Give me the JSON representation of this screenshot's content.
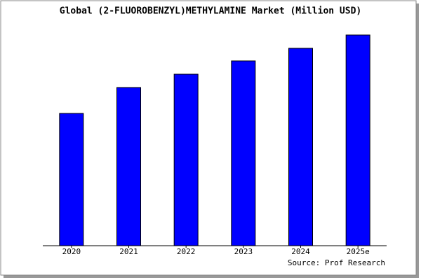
{
  "chart_data": {
    "type": "bar",
    "title": "Global (2-FLUOROBENZYL)METHYLAMINE Market (Million USD)",
    "categories": [
      "2020",
      "2021",
      "2022",
      "2023",
      "2024",
      "2025e"
    ],
    "values": [
      189,
      226,
      245,
      264,
      282,
      301
    ],
    "color": "#0000ff",
    "ylim": [
      0,
      303
    ],
    "source": "Source: Prof Research"
  }
}
